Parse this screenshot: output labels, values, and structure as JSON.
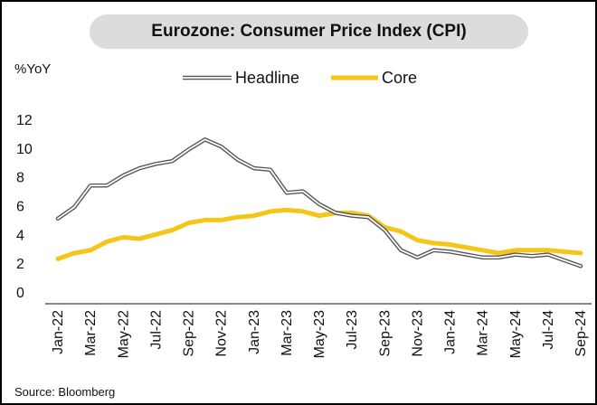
{
  "title": "Eurozone: Consumer Price Index (CPI)",
  "source": "Source: Bloomberg",
  "colors": {
    "headline": "#555555",
    "core": "#f5c518",
    "title_bg": "#dcdcdc"
  },
  "chart_data": {
    "type": "line",
    "ylabel": "%YoY",
    "ylim": [
      0,
      12
    ],
    "yticks": [
      0,
      2,
      4,
      6,
      8,
      10,
      12
    ],
    "legend_position": "top",
    "grid": false,
    "x": [
      "Jan-22",
      "Feb-22",
      "Mar-22",
      "Apr-22",
      "May-22",
      "Jun-22",
      "Jul-22",
      "Aug-22",
      "Sep-22",
      "Oct-22",
      "Nov-22",
      "Dec-22",
      "Jan-23",
      "Feb-23",
      "Mar-23",
      "Apr-23",
      "May-23",
      "Jun-23",
      "Jul-23",
      "Aug-23",
      "Sep-23",
      "Oct-23",
      "Nov-23",
      "Dec-23",
      "Jan-24",
      "Feb-24",
      "Mar-24",
      "Apr-24",
      "May-24",
      "Jun-24",
      "Jul-24",
      "Aug-24",
      "Sep-24"
    ],
    "xticklabels": [
      "Jan-22",
      "Mar-22",
      "May-22",
      "Jul-22",
      "Sep-22",
      "Nov-22",
      "Jan-23",
      "Mar-23",
      "May-23",
      "Jul-23",
      "Sep-23",
      "Nov-23",
      "Jan-24",
      "Mar-24",
      "May-24",
      "Jul-24",
      "Sep-24"
    ],
    "series": [
      {
        "name": "Headline",
        "style": "double-line",
        "values": [
          5.1,
          5.9,
          7.4,
          7.4,
          8.1,
          8.6,
          8.9,
          9.1,
          9.9,
          10.6,
          10.1,
          9.2,
          8.6,
          8.5,
          6.9,
          7.0,
          6.1,
          5.5,
          5.3,
          5.2,
          4.3,
          2.9,
          2.4,
          2.9,
          2.8,
          2.6,
          2.4,
          2.4,
          2.6,
          2.5,
          2.6,
          2.2,
          1.8
        ]
      },
      {
        "name": "Core",
        "style": "thick-line",
        "values": [
          2.3,
          2.7,
          2.9,
          3.5,
          3.8,
          3.7,
          4.0,
          4.3,
          4.8,
          5.0,
          5.0,
          5.2,
          5.3,
          5.6,
          5.7,
          5.6,
          5.3,
          5.5,
          5.5,
          5.3,
          4.5,
          4.2,
          3.6,
          3.4,
          3.3,
          3.1,
          2.9,
          2.7,
          2.9,
          2.9,
          2.9,
          2.8,
          2.7
        ]
      }
    ]
  }
}
